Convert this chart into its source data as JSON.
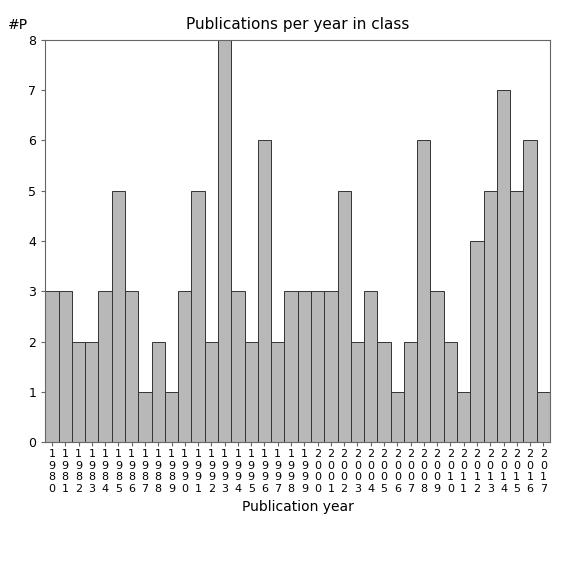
{
  "title": "Publications per year in class",
  "xlabel": "Publication year",
  "ylabel": "#P",
  "years": [
    1980,
    1981,
    1982,
    1983,
    1984,
    1985,
    1986,
    1987,
    1988,
    1989,
    1990,
    1991,
    1992,
    1993,
    1994,
    1995,
    1996,
    1997,
    1998,
    1999,
    2000,
    2001,
    2002,
    2003,
    2004,
    2005,
    2006,
    2007,
    2008,
    2009,
    2010,
    2011,
    2012,
    2013,
    2014,
    2015,
    2016,
    2017
  ],
  "values": [
    3,
    3,
    2,
    2,
    3,
    5,
    3,
    1,
    2,
    1,
    3,
    5,
    2,
    8,
    3,
    2,
    6,
    2,
    3,
    3,
    3,
    3,
    5,
    2,
    3,
    2,
    1,
    2,
    6,
    3,
    2,
    1,
    4,
    5,
    7,
    5,
    6,
    1
  ],
  "bar_color": "#b8b8b8",
  "bar_edge_color": "#333333",
  "ylim": [
    0,
    8
  ],
  "yticks": [
    0,
    1,
    2,
    3,
    4,
    5,
    6,
    7,
    8
  ],
  "title_fontsize": 11,
  "axis_label_fontsize": 10,
  "tick_fontsize": 9,
  "bg_color": "#ffffff"
}
